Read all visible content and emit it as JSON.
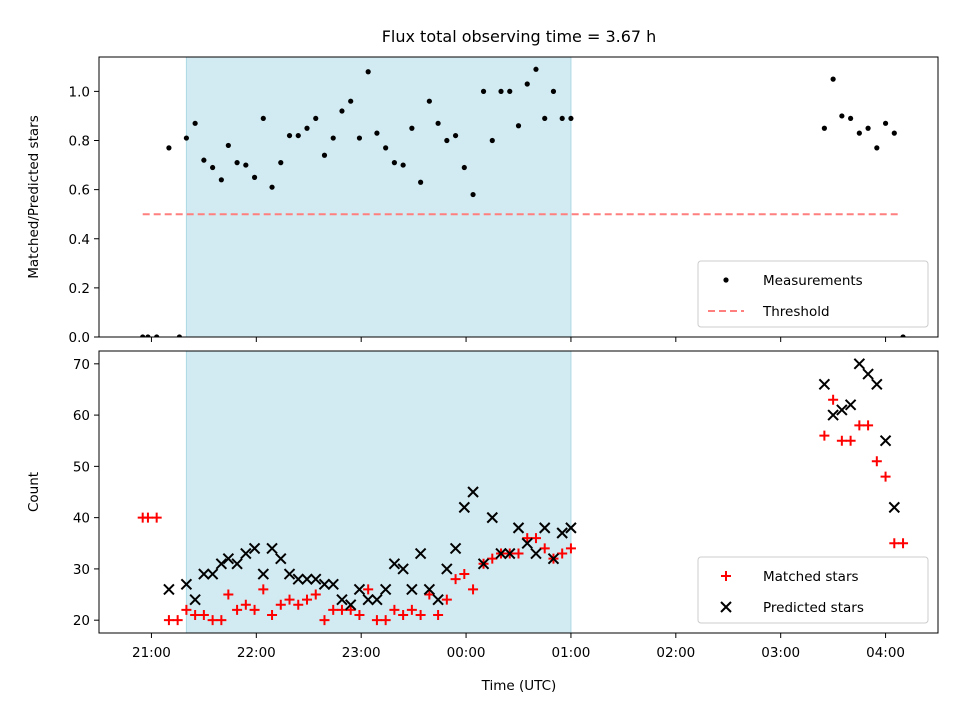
{
  "title": "Flux total observing time = 3.67 h",
  "xlabel": "Time (UTC)",
  "x_ticks": [
    "21:00",
    "22:00",
    "23:00",
    "00:00",
    "01:00",
    "02:00",
    "03:00",
    "04:00"
  ],
  "shaded_span": {
    "start": "21:20",
    "end": "01:00",
    "color": "#add8e6"
  },
  "chart_data": [
    {
      "type": "scatter",
      "ylabel": "Matched/Predicted stars",
      "ylim": [
        0,
        1.14
      ],
      "y_ticks": [
        "0.0",
        "0.2",
        "0.4",
        "0.6",
        "0.8",
        "1.0"
      ],
      "legend_position": "bottom-right",
      "series": [
        {
          "name": "Measurements",
          "marker": "dot",
          "color": "#000000",
          "points": [
            [
              "20:55",
              0.0
            ],
            [
              "20:58",
              0.0
            ],
            [
              "21:03",
              0.0
            ],
            [
              "21:10",
              0.77
            ],
            [
              "21:16",
              0.0
            ],
            [
              "21:20",
              0.81
            ],
            [
              "21:25",
              0.87
            ],
            [
              "21:30",
              0.72
            ],
            [
              "21:35",
              0.69
            ],
            [
              "21:40",
              0.64
            ],
            [
              "21:44",
              0.78
            ],
            [
              "21:49",
              0.71
            ],
            [
              "21:54",
              0.7
            ],
            [
              "21:59",
              0.65
            ],
            [
              "22:04",
              0.89
            ],
            [
              "22:09",
              0.61
            ],
            [
              "22:14",
              0.71
            ],
            [
              "22:19",
              0.82
            ],
            [
              "22:24",
              0.82
            ],
            [
              "22:29",
              0.85
            ],
            [
              "22:34",
              0.89
            ],
            [
              "22:39",
              0.74
            ],
            [
              "22:44",
              0.81
            ],
            [
              "22:49",
              0.92
            ],
            [
              "22:54",
              0.96
            ],
            [
              "22:59",
              0.81
            ],
            [
              "23:04",
              1.08
            ],
            [
              "23:09",
              0.83
            ],
            [
              "23:14",
              0.77
            ],
            [
              "23:19",
              0.71
            ],
            [
              "23:24",
              0.7
            ],
            [
              "23:29",
              0.85
            ],
            [
              "23:34",
              0.63
            ],
            [
              "23:39",
              0.96
            ],
            [
              "23:44",
              0.87
            ],
            [
              "23:49",
              0.8
            ],
            [
              "23:54",
              0.82
            ],
            [
              "23:59",
              0.69
            ],
            [
              "00:04",
              0.58
            ],
            [
              "00:10",
              1.0
            ],
            [
              "00:15",
              0.8
            ],
            [
              "00:20",
              1.0
            ],
            [
              "00:25",
              1.0
            ],
            [
              "00:30",
              0.86
            ],
            [
              "00:35",
              1.03
            ],
            [
              "00:40",
              1.09
            ],
            [
              "00:45",
              0.89
            ],
            [
              "00:50",
              1.0
            ],
            [
              "00:55",
              0.89
            ],
            [
              "01:00",
              0.89
            ],
            [
              "03:25",
              0.85
            ],
            [
              "03:30",
              1.05
            ],
            [
              "03:35",
              0.9
            ],
            [
              "03:40",
              0.89
            ],
            [
              "03:45",
              0.83
            ],
            [
              "03:50",
              0.85
            ],
            [
              "03:55",
              0.77
            ],
            [
              "04:00",
              0.87
            ],
            [
              "04:05",
              0.83
            ],
            [
              "04:10",
              0.0
            ]
          ]
        },
        {
          "name": "Threshold",
          "type": "line",
          "style": "dashed",
          "color": "#ff7f7f",
          "points": [
            [
              "20:55",
              0.5
            ],
            [
              "04:08",
              0.5
            ]
          ]
        }
      ]
    },
    {
      "type": "scatter",
      "ylabel": "Count",
      "ylim": [
        17.5,
        72.5
      ],
      "y_ticks": [
        "20",
        "30",
        "40",
        "50",
        "60",
        "70"
      ],
      "legend_position": "bottom-right",
      "series": [
        {
          "name": "Matched stars",
          "marker": "plus",
          "color": "#ff0000",
          "points": [
            [
              "20:55",
              40
            ],
            [
              "20:58",
              40
            ],
            [
              "21:03",
              40
            ],
            [
              "21:10",
              20
            ],
            [
              "21:15",
              20
            ],
            [
              "21:20",
              22
            ],
            [
              "21:25",
              21
            ],
            [
              "21:30",
              21
            ],
            [
              "21:35",
              20
            ],
            [
              "21:40",
              20
            ],
            [
              "21:44",
              25
            ],
            [
              "21:49",
              22
            ],
            [
              "21:54",
              23
            ],
            [
              "21:59",
              22
            ],
            [
              "22:04",
              26
            ],
            [
              "22:09",
              21
            ],
            [
              "22:14",
              23
            ],
            [
              "22:19",
              24
            ],
            [
              "22:24",
              23
            ],
            [
              "22:29",
              24
            ],
            [
              "22:34",
              25
            ],
            [
              "22:39",
              20
            ],
            [
              "22:44",
              22
            ],
            [
              "22:49",
              22
            ],
            [
              "22:54",
              22
            ],
            [
              "22:59",
              21
            ],
            [
              "23:04",
              26
            ],
            [
              "23:09",
              20
            ],
            [
              "23:14",
              20
            ],
            [
              "23:19",
              22
            ],
            [
              "23:24",
              21
            ],
            [
              "23:29",
              22
            ],
            [
              "23:34",
              21
            ],
            [
              "23:39",
              25
            ],
            [
              "23:44",
              21
            ],
            [
              "23:49",
              24
            ],
            [
              "23:54",
              28
            ],
            [
              "23:59",
              29
            ],
            [
              "00:04",
              26
            ],
            [
              "00:10",
              31
            ],
            [
              "00:15",
              32
            ],
            [
              "00:20",
              33
            ],
            [
              "00:25",
              33
            ],
            [
              "00:30",
              33
            ],
            [
              "00:35",
              36
            ],
            [
              "00:40",
              36
            ],
            [
              "00:45",
              34
            ],
            [
              "00:50",
              32
            ],
            [
              "00:55",
              33
            ],
            [
              "01:00",
              34
            ],
            [
              "03:25",
              56
            ],
            [
              "03:30",
              63
            ],
            [
              "03:35",
              55
            ],
            [
              "03:40",
              55
            ],
            [
              "03:45",
              58
            ],
            [
              "03:50",
              58
            ],
            [
              "03:55",
              51
            ],
            [
              "04:00",
              48
            ],
            [
              "04:05",
              35
            ],
            [
              "04:10",
              35
            ]
          ]
        },
        {
          "name": "Predicted stars",
          "marker": "x",
          "color": "#000000",
          "points": [
            [
              "21:10",
              26
            ],
            [
              "21:20",
              27
            ],
            [
              "21:25",
              24
            ],
            [
              "21:30",
              29
            ],
            [
              "21:35",
              29
            ],
            [
              "21:40",
              31
            ],
            [
              "21:44",
              32
            ],
            [
              "21:49",
              31
            ],
            [
              "21:54",
              33
            ],
            [
              "21:59",
              34
            ],
            [
              "22:04",
              29
            ],
            [
              "22:09",
              34
            ],
            [
              "22:14",
              32
            ],
            [
              "22:19",
              29
            ],
            [
              "22:24",
              28
            ],
            [
              "22:29",
              28
            ],
            [
              "22:34",
              28
            ],
            [
              "22:39",
              27
            ],
            [
              "22:44",
              27
            ],
            [
              "22:49",
              24
            ],
            [
              "22:54",
              23
            ],
            [
              "22:59",
              26
            ],
            [
              "23:04",
              24
            ],
            [
              "23:09",
              24
            ],
            [
              "23:14",
              26
            ],
            [
              "23:19",
              31
            ],
            [
              "23:24",
              30
            ],
            [
              "23:29",
              26
            ],
            [
              "23:34",
              33
            ],
            [
              "23:39",
              26
            ],
            [
              "23:44",
              24
            ],
            [
              "23:49",
              30
            ],
            [
              "23:54",
              34
            ],
            [
              "23:59",
              42
            ],
            [
              "00:04",
              45
            ],
            [
              "00:10",
              31
            ],
            [
              "00:15",
              40
            ],
            [
              "00:20",
              33
            ],
            [
              "00:25",
              33
            ],
            [
              "00:30",
              38
            ],
            [
              "00:35",
              35
            ],
            [
              "00:40",
              33
            ],
            [
              "00:45",
              38
            ],
            [
              "00:50",
              32
            ],
            [
              "00:55",
              37
            ],
            [
              "01:00",
              38
            ],
            [
              "03:25",
              66
            ],
            [
              "03:30",
              60
            ],
            [
              "03:35",
              61
            ],
            [
              "03:40",
              62
            ],
            [
              "03:45",
              70
            ],
            [
              "03:50",
              68
            ],
            [
              "03:55",
              66
            ],
            [
              "04:00",
              55
            ],
            [
              "04:05",
              42
            ]
          ]
        }
      ]
    }
  ]
}
